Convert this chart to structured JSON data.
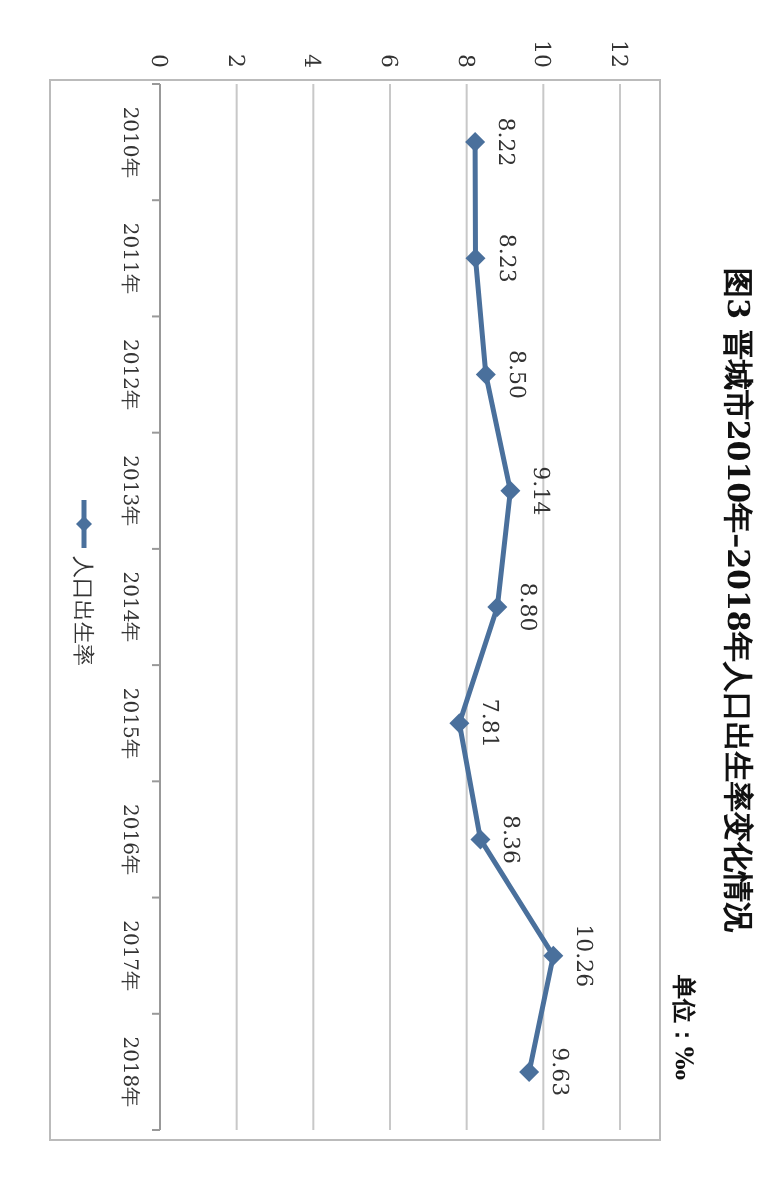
{
  "chart_data": {
    "type": "line",
    "title": "图3  晋城市2010年–2018年人口出生率变化情况",
    "annotations": [
      "单位：‰"
    ],
    "categories": [
      "2010年",
      "2011年",
      "2012年",
      "2013年",
      "2014年",
      "2015年",
      "2016年",
      "2017年",
      "2018年"
    ],
    "series": [
      {
        "name": "人口出生率",
        "color": "#4a709c",
        "values": [
          8.22,
          8.23,
          8.5,
          9.14,
          8.8,
          7.81,
          8.36,
          10.26,
          9.63
        ],
        "value_labels": [
          "8.22",
          "8.23",
          "8.50",
          "9.14",
          "8.80",
          "7.81",
          "8.36",
          "10.26",
          "9.63"
        ]
      }
    ],
    "orientation": "horizontal",
    "xlim": [
      0,
      12
    ],
    "xticks": [
      0,
      2,
      4,
      6,
      8,
      10,
      12
    ],
    "grid": "x",
    "legend": "left",
    "marker": "diamond",
    "line_style": "solid"
  }
}
